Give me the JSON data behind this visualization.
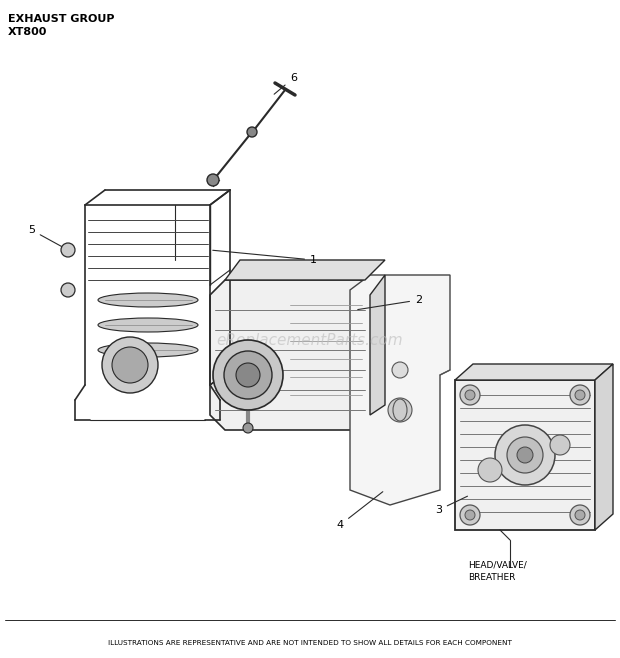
{
  "title_line1": "EXHAUST GROUP",
  "title_line2": "XT800",
  "watermark": "eReplacementParts.com",
  "footer": "ILLUSTRATIONS ARE REPRESENTATIVE AND ARE NOT INTENDED TO SHOW ALL DETAILS FOR EACH COMPONENT",
  "background_color": "#ffffff",
  "text_color": "#000000",
  "watermark_color": "#bbbbbb",
  "line_color": "#2a2a2a",
  "figsize": [
    6.2,
    6.58
  ],
  "dpi": 100
}
